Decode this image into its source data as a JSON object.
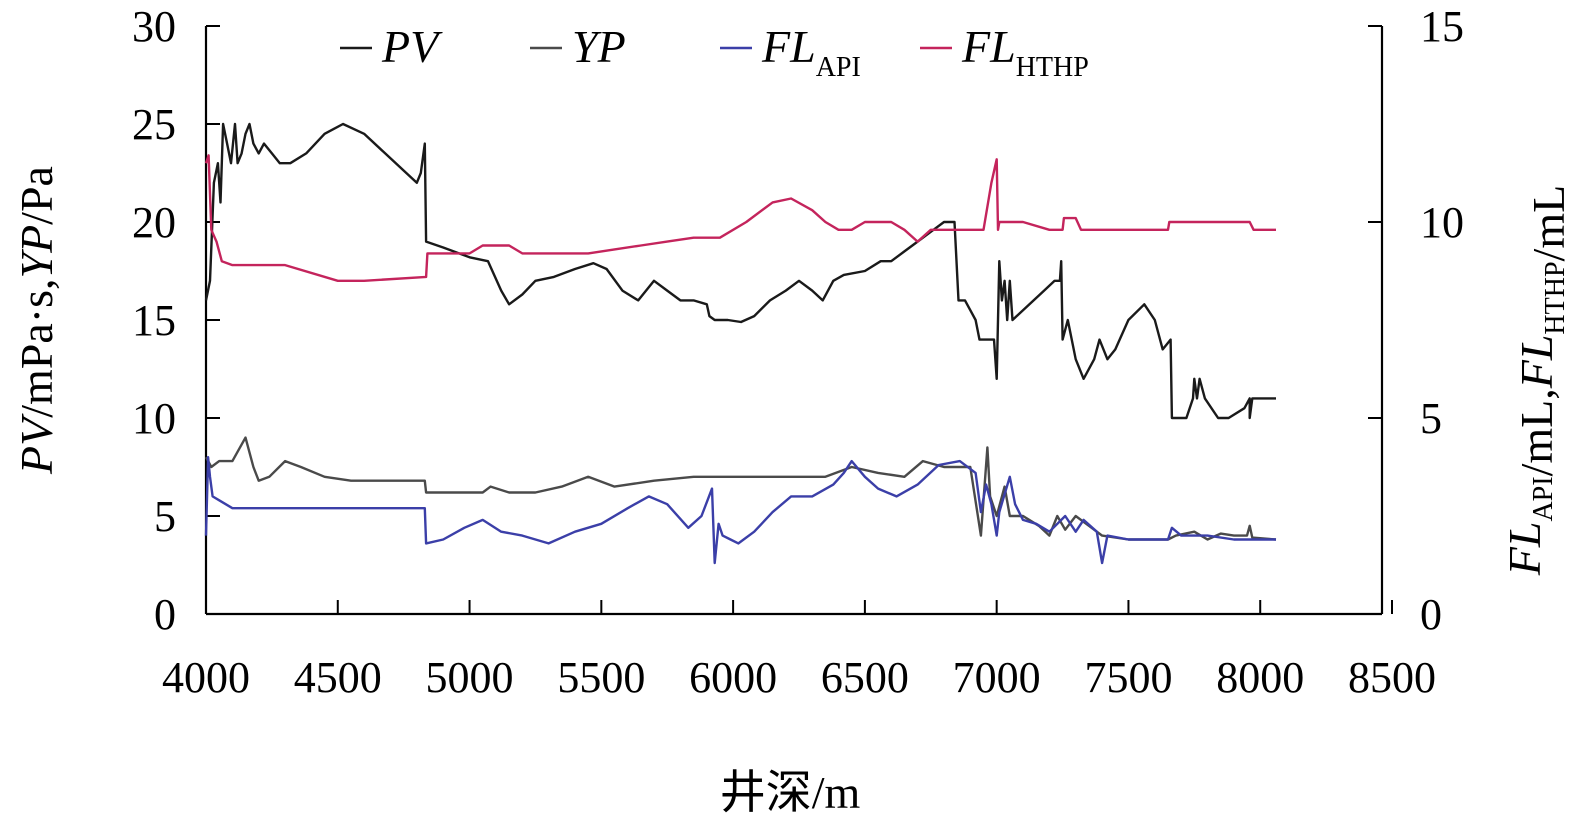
{
  "chart_data": {
    "type": "line",
    "title": "",
    "xlabel": "井深/m",
    "ylabel_left": {
      "parts": [
        {
          "t": "PV",
          "i": true
        },
        {
          "t": "/mPa·s,",
          "i": false
        },
        {
          "t": "YP",
          "i": true
        },
        {
          "t": "/Pa",
          "i": false
        }
      ]
    },
    "ylabel_right": {
      "parts": [
        {
          "t": "FL",
          "i": true,
          "sub": "API"
        },
        {
          "t": "/mL,",
          "i": false
        },
        {
          "t": "FL",
          "i": true,
          "sub": "HTHP"
        },
        {
          "t": "/mL",
          "i": false
        }
      ]
    },
    "xlim": [
      4000,
      8500
    ],
    "xticks": [
      4000,
      4500,
      5000,
      5500,
      6000,
      6500,
      7000,
      7500,
      8000,
      8500
    ],
    "ylim_left": [
      0,
      30
    ],
    "yticks_left": [
      0,
      5,
      10,
      15,
      20,
      25,
      30
    ],
    "ylim_right": [
      0,
      15
    ],
    "yticks_right": [
      0,
      5,
      10,
      15
    ],
    "grid": false,
    "legend": {
      "placement": "top",
      "entries": [
        {
          "name": "PV",
          "sub": ""
        },
        {
          "name": "YP",
          "sub": ""
        },
        {
          "name": "FL",
          "sub": "API"
        },
        {
          "name": "FL",
          "sub": "HTHP"
        }
      ]
    },
    "series": [
      {
        "name": "PV",
        "axis": "left",
        "color": "#1a1a1a",
        "points": [
          [
            4000,
            16
          ],
          [
            4015,
            17
          ],
          [
            4030,
            22
          ],
          [
            4045,
            23
          ],
          [
            4055,
            21
          ],
          [
            4065,
            25
          ],
          [
            4080,
            24
          ],
          [
            4095,
            23
          ],
          [
            4110,
            25
          ],
          [
            4120,
            23
          ],
          [
            4135,
            23.5
          ],
          [
            4150,
            24.5
          ],
          [
            4165,
            25
          ],
          [
            4180,
            24
          ],
          [
            4200,
            23.5
          ],
          [
            4220,
            24
          ],
          [
            4250,
            23.5
          ],
          [
            4280,
            23
          ],
          [
            4320,
            23
          ],
          [
            4380,
            23.5
          ],
          [
            4450,
            24.5
          ],
          [
            4520,
            25
          ],
          [
            4600,
            24.5
          ],
          [
            4680,
            23.5
          ],
          [
            4760,
            22.5
          ],
          [
            4800,
            22
          ],
          [
            4815,
            22.5
          ],
          [
            4830,
            24
          ],
          [
            4835,
            19
          ],
          [
            4900,
            18.7
          ],
          [
            5000,
            18.2
          ],
          [
            5070,
            18
          ],
          [
            5120,
            16.5
          ],
          [
            5150,
            15.8
          ],
          [
            5200,
            16.3
          ],
          [
            5250,
            17
          ],
          [
            5320,
            17.2
          ],
          [
            5400,
            17.6
          ],
          [
            5470,
            17.9
          ],
          [
            5520,
            17.6
          ],
          [
            5580,
            16.5
          ],
          [
            5640,
            16
          ],
          [
            5700,
            17
          ],
          [
            5750,
            16.5
          ],
          [
            5800,
            16
          ],
          [
            5850,
            16
          ],
          [
            5900,
            15.8
          ],
          [
            5910,
            15.2
          ],
          [
            5930,
            15
          ],
          [
            5980,
            15
          ],
          [
            6030,
            14.9
          ],
          [
            6080,
            15.2
          ],
          [
            6140,
            16
          ],
          [
            6200,
            16.5
          ],
          [
            6250,
            17
          ],
          [
            6300,
            16.5
          ],
          [
            6340,
            16
          ],
          [
            6380,
            17
          ],
          [
            6420,
            17.3
          ],
          [
            6500,
            17.5
          ],
          [
            6560,
            18
          ],
          [
            6600,
            18
          ],
          [
            6650,
            18.5
          ],
          [
            6700,
            19
          ],
          [
            6750,
            19.5
          ],
          [
            6800,
            20
          ],
          [
            6840,
            20
          ],
          [
            6855,
            16
          ],
          [
            6880,
            16
          ],
          [
            6900,
            15.5
          ],
          [
            6920,
            15
          ],
          [
            6935,
            14
          ],
          [
            6990,
            14
          ],
          [
            7000,
            12
          ],
          [
            7010,
            18
          ],
          [
            7020,
            16
          ],
          [
            7030,
            17
          ],
          [
            7040,
            15
          ],
          [
            7050,
            17
          ],
          [
            7060,
            15
          ],
          [
            7100,
            15.5
          ],
          [
            7180,
            16.5
          ],
          [
            7220,
            17
          ],
          [
            7240,
            17
          ],
          [
            7245,
            18
          ],
          [
            7250,
            14
          ],
          [
            7270,
            15
          ],
          [
            7300,
            13
          ],
          [
            7330,
            12
          ],
          [
            7370,
            13
          ],
          [
            7390,
            14
          ],
          [
            7420,
            13
          ],
          [
            7450,
            13.5
          ],
          [
            7500,
            15
          ],
          [
            7560,
            15.8
          ],
          [
            7600,
            15
          ],
          [
            7630,
            13.5
          ],
          [
            7660,
            14
          ],
          [
            7665,
            10
          ],
          [
            7720,
            10
          ],
          [
            7745,
            11
          ],
          [
            7750,
            12
          ],
          [
            7760,
            11
          ],
          [
            7770,
            12
          ],
          [
            7790,
            11
          ],
          [
            7840,
            10
          ],
          [
            7880,
            10
          ],
          [
            7940,
            10.5
          ],
          [
            7960,
            11
          ],
          [
            7960,
            10
          ],
          [
            7970,
            11
          ],
          [
            8060,
            11
          ]
        ]
      },
      {
        "name": "YP",
        "axis": "left",
        "color": "#4a4a4a",
        "points": [
          [
            4000,
            8
          ],
          [
            4020,
            7.5
          ],
          [
            4050,
            7.8
          ],
          [
            4100,
            7.8
          ],
          [
            4150,
            9
          ],
          [
            4180,
            7.5
          ],
          [
            4200,
            6.8
          ],
          [
            4240,
            7
          ],
          [
            4300,
            7.8
          ],
          [
            4360,
            7.5
          ],
          [
            4450,
            7
          ],
          [
            4550,
            6.8
          ],
          [
            4700,
            6.8
          ],
          [
            4830,
            6.8
          ],
          [
            4835,
            6.2
          ],
          [
            4900,
            6.2
          ],
          [
            5050,
            6.2
          ],
          [
            5080,
            6.5
          ],
          [
            5150,
            6.2
          ],
          [
            5250,
            6.2
          ],
          [
            5350,
            6.5
          ],
          [
            5450,
            7
          ],
          [
            5550,
            6.5
          ],
          [
            5700,
            6.8
          ],
          [
            5850,
            7
          ],
          [
            6000,
            7
          ],
          [
            6200,
            7
          ],
          [
            6350,
            7
          ],
          [
            6450,
            7.5
          ],
          [
            6550,
            7.2
          ],
          [
            6650,
            7
          ],
          [
            6720,
            7.8
          ],
          [
            6800,
            7.5
          ],
          [
            6900,
            7.5
          ],
          [
            6940,
            4
          ],
          [
            6965,
            8.5
          ],
          [
            6975,
            6
          ],
          [
            7000,
            5
          ],
          [
            7030,
            6.5
          ],
          [
            7050,
            5
          ],
          [
            7100,
            5
          ],
          [
            7160,
            4.5
          ],
          [
            7200,
            4
          ],
          [
            7230,
            5
          ],
          [
            7260,
            4.3
          ],
          [
            7300,
            5
          ],
          [
            7350,
            4.5
          ],
          [
            7400,
            4
          ],
          [
            7500,
            3.8
          ],
          [
            7650,
            3.8
          ],
          [
            7680,
            4
          ],
          [
            7750,
            4.2
          ],
          [
            7800,
            3.8
          ],
          [
            7850,
            4.1
          ],
          [
            7900,
            4
          ],
          [
            7950,
            4
          ],
          [
            7960,
            4.5
          ],
          [
            7970,
            3.9
          ],
          [
            8060,
            3.8
          ]
        ]
      },
      {
        "name": "FL_API",
        "axis": "right",
        "color": "#3b3fa8",
        "points": [
          [
            4000,
            2
          ],
          [
            4008,
            4
          ],
          [
            4015,
            3.5
          ],
          [
            4025,
            3
          ],
          [
            4050,
            2.9
          ],
          [
            4100,
            2.7
          ],
          [
            4300,
            2.7
          ],
          [
            4500,
            2.7
          ],
          [
            4700,
            2.7
          ],
          [
            4830,
            2.7
          ],
          [
            4835,
            1.8
          ],
          [
            4900,
            1.9
          ],
          [
            4980,
            2.2
          ],
          [
            5050,
            2.4
          ],
          [
            5120,
            2.1
          ],
          [
            5200,
            2
          ],
          [
            5300,
            1.8
          ],
          [
            5400,
            2.1
          ],
          [
            5500,
            2.3
          ],
          [
            5600,
            2.7
          ],
          [
            5680,
            3
          ],
          [
            5750,
            2.8
          ],
          [
            5830,
            2.2
          ],
          [
            5880,
            2.5
          ],
          [
            5920,
            3.2
          ],
          [
            5930,
            1.3
          ],
          [
            5945,
            2.3
          ],
          [
            5960,
            2
          ],
          [
            5990,
            1.9
          ],
          [
            6020,
            1.8
          ],
          [
            6080,
            2.1
          ],
          [
            6150,
            2.6
          ],
          [
            6220,
            3
          ],
          [
            6300,
            3
          ],
          [
            6380,
            3.3
          ],
          [
            6420,
            3.6
          ],
          [
            6450,
            3.9
          ],
          [
            6500,
            3.5
          ],
          [
            6550,
            3.2
          ],
          [
            6620,
            3
          ],
          [
            6700,
            3.3
          ],
          [
            6780,
            3.8
          ],
          [
            6860,
            3.9
          ],
          [
            6920,
            3.6
          ],
          [
            6940,
            2.6
          ],
          [
            6960,
            3.3
          ],
          [
            6980,
            2.8
          ],
          [
            7000,
            2
          ],
          [
            7010,
            2.6
          ],
          [
            7050,
            3.5
          ],
          [
            7070,
            2.8
          ],
          [
            7100,
            2.4
          ],
          [
            7150,
            2.3
          ],
          [
            7200,
            2.1
          ],
          [
            7260,
            2.5
          ],
          [
            7300,
            2.1
          ],
          [
            7330,
            2.4
          ],
          [
            7380,
            2.1
          ],
          [
            7400,
            1.3
          ],
          [
            7420,
            2
          ],
          [
            7500,
            1.9
          ],
          [
            7600,
            1.9
          ],
          [
            7650,
            1.9
          ],
          [
            7665,
            2.2
          ],
          [
            7700,
            2
          ],
          [
            7750,
            2
          ],
          [
            7800,
            2
          ],
          [
            7900,
            1.9
          ],
          [
            8000,
            1.9
          ],
          [
            8060,
            1.9
          ]
        ]
      },
      {
        "name": "FL_HTHP",
        "axis": "right",
        "color": "#c4245c",
        "points": [
          [
            4000,
            11.5
          ],
          [
            4010,
            11.7
          ],
          [
            4020,
            9.8
          ],
          [
            4040,
            9.5
          ],
          [
            4060,
            9
          ],
          [
            4100,
            8.9
          ],
          [
            4300,
            8.9
          ],
          [
            4500,
            8.5
          ],
          [
            4600,
            8.5
          ],
          [
            4835,
            8.6
          ],
          [
            4840,
            9.2
          ],
          [
            5000,
            9.2
          ],
          [
            5050,
            9.4
          ],
          [
            5150,
            9.4
          ],
          [
            5200,
            9.2
          ],
          [
            5350,
            9.2
          ],
          [
            5450,
            9.2
          ],
          [
            5550,
            9.3
          ],
          [
            5650,
            9.4
          ],
          [
            5750,
            9.5
          ],
          [
            5850,
            9.6
          ],
          [
            5950,
            9.6
          ],
          [
            6050,
            10
          ],
          [
            6150,
            10.5
          ],
          [
            6220,
            10.6
          ],
          [
            6300,
            10.3
          ],
          [
            6350,
            10
          ],
          [
            6400,
            9.8
          ],
          [
            6450,
            9.8
          ],
          [
            6500,
            10
          ],
          [
            6600,
            10
          ],
          [
            6650,
            9.8
          ],
          [
            6700,
            9.5
          ],
          [
            6750,
            9.8
          ],
          [
            6950,
            9.8
          ],
          [
            6980,
            11
          ],
          [
            7000,
            11.6
          ],
          [
            7005,
            9.8
          ],
          [
            7010,
            10
          ],
          [
            7100,
            10
          ],
          [
            7200,
            9.8
          ],
          [
            7250,
            9.8
          ],
          [
            7255,
            10.1
          ],
          [
            7300,
            10.1
          ],
          [
            7320,
            9.8
          ],
          [
            7500,
            9.8
          ],
          [
            7650,
            9.8
          ],
          [
            7655,
            10
          ],
          [
            7750,
            10
          ],
          [
            7960,
            10
          ],
          [
            7975,
            9.8
          ],
          [
            8060,
            9.8
          ]
        ]
      }
    ]
  }
}
